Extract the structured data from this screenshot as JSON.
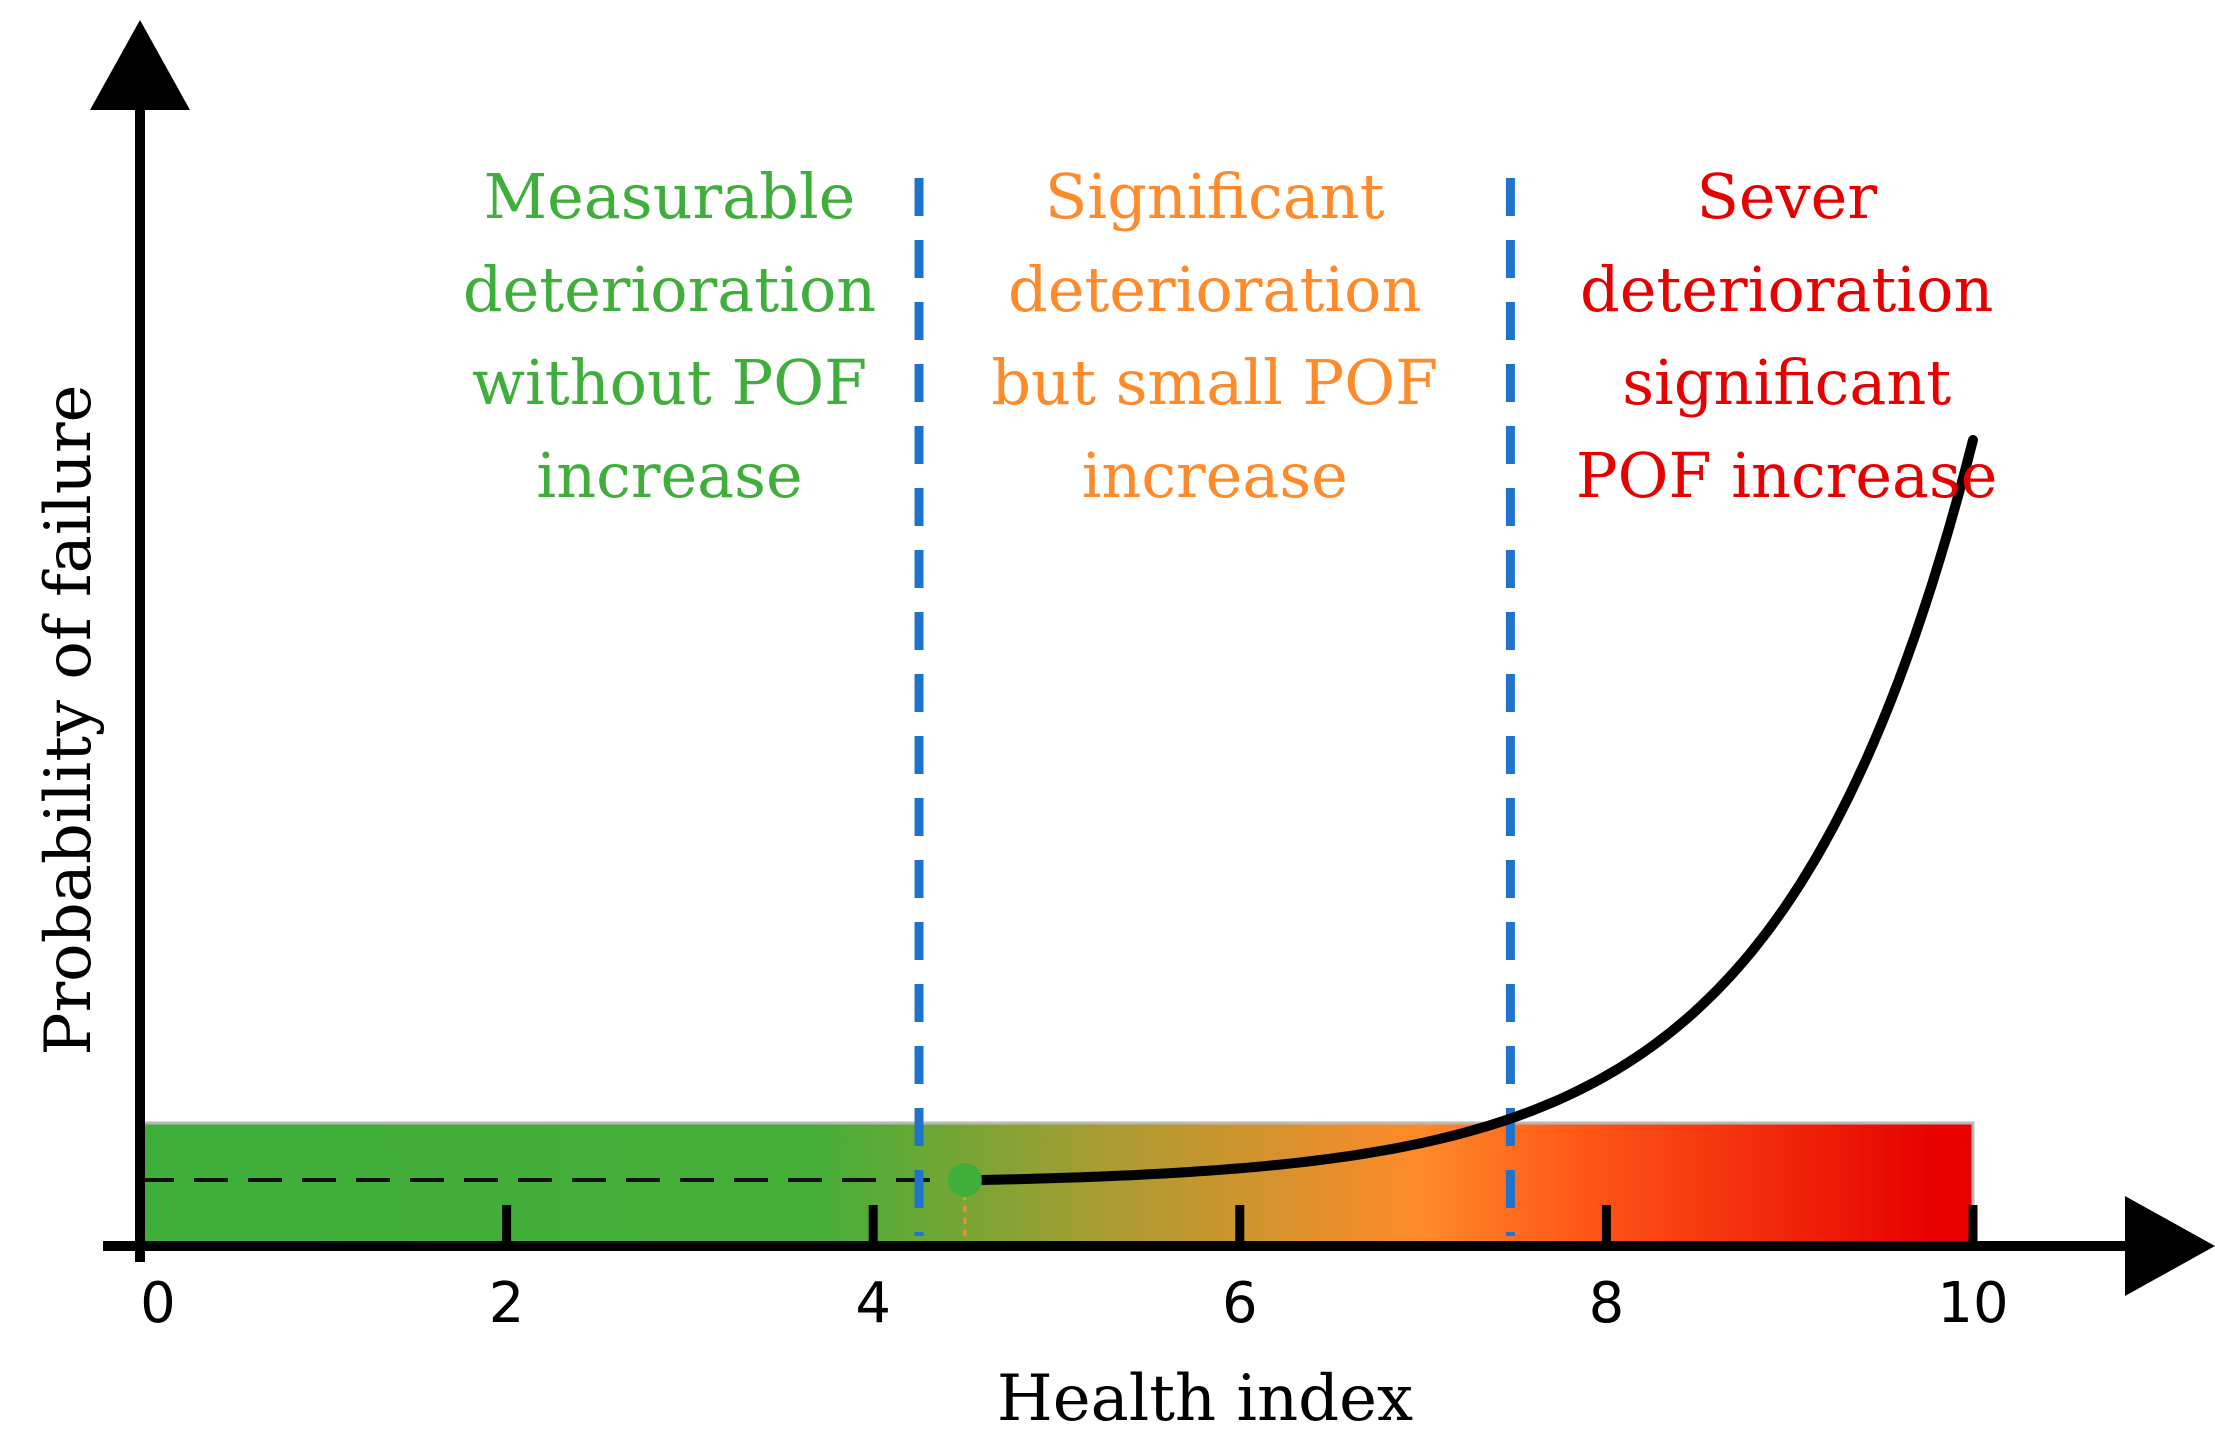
{
  "colors": {
    "green": "#3fae3a",
    "orange": "#ff8a2a",
    "red": "#e60000",
    "divider": "#1f73cc",
    "axis": "#000000",
    "bar_gray": "#b8b8b8"
  },
  "chart_data": {
    "type": "line",
    "xlabel": "Health index",
    "ylabel": "Probability of failure",
    "xlim": [
      0,
      10
    ],
    "x_ticks": [
      "0",
      "2",
      "4",
      "6",
      "8",
      "10"
    ],
    "thresholds": [
      4.25,
      7.4
    ],
    "zones": [
      {
        "id": "green",
        "lines": [
          "Measurable",
          "deterioration",
          "without POF",
          "increase"
        ]
      },
      {
        "id": "orange",
        "lines": [
          "Significant",
          "deterioration",
          "but small POF",
          "increase"
        ]
      },
      {
        "id": "red",
        "lines": [
          "Sever",
          "deterioration",
          "significant",
          "POF increase"
        ]
      }
    ],
    "marker": {
      "x": 4.5
    },
    "gradient_stops": [
      {
        "pos": 0.0,
        "color": "#3fae3a"
      },
      {
        "pos": 0.37,
        "color": "#45ae38"
      },
      {
        "pos": 0.52,
        "color": "#a59d32"
      },
      {
        "pos": 0.7,
        "color": "#ff8a2a"
      },
      {
        "pos": 0.78,
        "color": "#ff5a18"
      },
      {
        "pos": 0.98,
        "color": "#e60000"
      }
    ]
  }
}
